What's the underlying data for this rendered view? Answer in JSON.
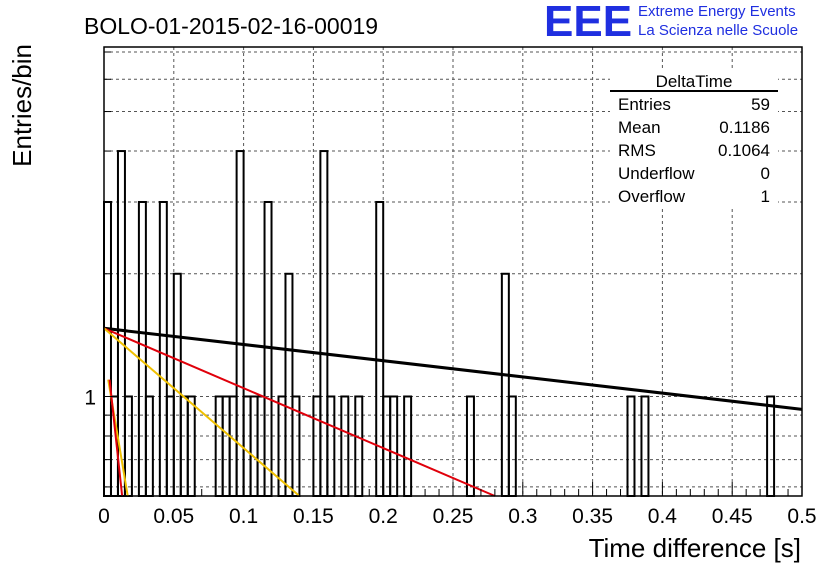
{
  "header": {
    "run_title": "BOLO-01-2015-02-16-00019",
    "logo_mark": "EEE",
    "logo_line1": "Extreme Energy Events",
    "logo_line2": "La Scienza nelle Scuole"
  },
  "stats_box": {
    "title": "DeltaTime",
    "rows": [
      {
        "label": "Entries",
        "value": "59"
      },
      {
        "label": "Mean",
        "value": "0.1186"
      },
      {
        "label": "RMS",
        "value": "0.1064"
      },
      {
        "label": "Underflow",
        "value": "0"
      },
      {
        "label": "Overflow",
        "value": "1"
      }
    ]
  },
  "colors": {
    "histogram": "#000000",
    "fit_black": "#000000",
    "fit_red": "#e0000b",
    "fit_yellow": "#f0c000",
    "grid": "#555555"
  },
  "chart_data": {
    "type": "histogram",
    "title": "BOLO-01-2015-02-16-00019",
    "xlabel": "Time difference [s]",
    "ylabel": "Entries/bin",
    "xlim": [
      0,
      0.5
    ],
    "ylim": [
      0.57,
      7.2
    ],
    "ylog": true,
    "grid": true,
    "legend": "top-right stats box",
    "x_ticks": [
      "0",
      "0.05",
      "0.1",
      "0.15",
      "0.2",
      "0.25",
      "0.3",
      "0.35",
      "0.4",
      "0.45",
      "0.5"
    ],
    "x_tick_values": [
      0,
      0.05,
      0.1,
      0.15,
      0.2,
      0.25,
      0.3,
      0.35,
      0.4,
      0.45,
      0.5
    ],
    "y_ticks": [
      "1"
    ],
    "y_tick_values": [
      1
    ],
    "bin_width": 0.005,
    "bins": [
      {
        "x_low": 0.0,
        "y": 3
      },
      {
        "x_low": 0.005,
        "y": 1
      },
      {
        "x_low": 0.01,
        "y": 4
      },
      {
        "x_low": 0.015,
        "y": 1
      },
      {
        "x_low": 0.025,
        "y": 3
      },
      {
        "x_low": 0.03,
        "y": 1
      },
      {
        "x_low": 0.04,
        "y": 3
      },
      {
        "x_low": 0.045,
        "y": 1
      },
      {
        "x_low": 0.05,
        "y": 2
      },
      {
        "x_low": 0.055,
        "y": 1
      },
      {
        "x_low": 0.06,
        "y": 1
      },
      {
        "x_low": 0.08,
        "y": 1
      },
      {
        "x_low": 0.085,
        "y": 1
      },
      {
        "x_low": 0.09,
        "y": 1
      },
      {
        "x_low": 0.095,
        "y": 4
      },
      {
        "x_low": 0.1,
        "y": 1
      },
      {
        "x_low": 0.105,
        "y": 1
      },
      {
        "x_low": 0.11,
        "y": 1
      },
      {
        "x_low": 0.115,
        "y": 3
      },
      {
        "x_low": 0.125,
        "y": 1
      },
      {
        "x_low": 0.13,
        "y": 2
      },
      {
        "x_low": 0.135,
        "y": 1
      },
      {
        "x_low": 0.15,
        "y": 1
      },
      {
        "x_low": 0.155,
        "y": 4
      },
      {
        "x_low": 0.16,
        "y": 1
      },
      {
        "x_low": 0.17,
        "y": 1
      },
      {
        "x_low": 0.18,
        "y": 1
      },
      {
        "x_low": 0.195,
        "y": 3
      },
      {
        "x_low": 0.2,
        "y": 1
      },
      {
        "x_low": 0.205,
        "y": 1
      },
      {
        "x_low": 0.215,
        "y": 1
      },
      {
        "x_low": 0.26,
        "y": 1
      },
      {
        "x_low": 0.285,
        "y": 2
      },
      {
        "x_low": 0.29,
        "y": 1
      },
      {
        "x_low": 0.375,
        "y": 1
      },
      {
        "x_low": 0.385,
        "y": 1
      },
      {
        "x_low": 0.475,
        "y": 1
      }
    ],
    "fits": [
      {
        "name": "black",
        "color": "#000000",
        "points": [
          [
            0.0,
            1.47
          ],
          [
            0.5,
            0.93
          ]
        ]
      },
      {
        "name": "red",
        "color": "#e0000b",
        "points": [
          [
            0.0,
            1.47
          ],
          [
            0.28,
            0.57
          ]
        ]
      },
      {
        "name": "yellow",
        "color": "#f0c000",
        "points": [
          [
            0.0,
            1.47
          ],
          [
            0.14,
            0.57
          ]
        ]
      },
      {
        "name": "yellow-steep",
        "color": "#f0c000",
        "points": [
          [
            0.003,
            1.1
          ],
          [
            0.017,
            0.57
          ]
        ]
      },
      {
        "name": "red-steep",
        "color": "#e0000b",
        "points": [
          [
            0.004,
            1.1
          ],
          [
            0.013,
            0.57
          ]
        ]
      }
    ]
  }
}
